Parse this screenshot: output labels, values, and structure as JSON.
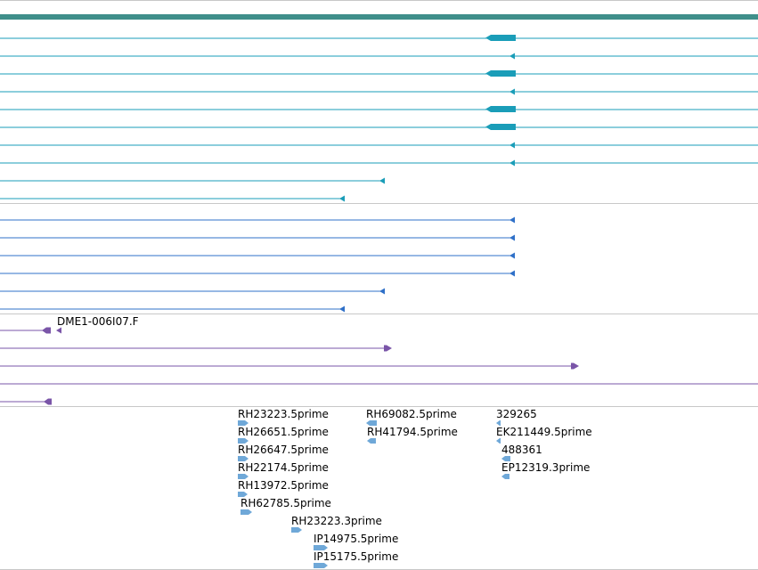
{
  "colors": {
    "border": "#c8c8c8",
    "gene_bar": "#3f8f8a",
    "transcript_teal": "#1a9db8",
    "transcript_blue": "#2f70c8",
    "transcript_purple": "#7a55a8",
    "est_light_blue": "#6fa8d8"
  },
  "tracks": [
    {
      "name": "gene-track"
    },
    {
      "name": "transcript-track-teal"
    },
    {
      "name": "transcript-track-blue"
    },
    {
      "name": "purple-feature-track"
    },
    {
      "name": "est-track"
    }
  ],
  "labels": {
    "dme": "DME1-006I07.F",
    "est": [
      "RH23223.5prime",
      "RH26651.5prime",
      "RH26647.5prime",
      "RH22174.5prime",
      "RH13972.5prime",
      "RH62785.5prime",
      "RH23223.3prime",
      "IP14975.5prime",
      "IP15175.5prime",
      "RH69082.5prime",
      "RH41794.5prime",
      "329265",
      "EK211449.5prime",
      "488361",
      "EP12319.3prime"
    ]
  },
  "icons": {
    "reverse_arrow": "triangle-left-icon",
    "forward_arrow": "triangle-right-icon",
    "est_glyph": "est-arrow-icon"
  }
}
